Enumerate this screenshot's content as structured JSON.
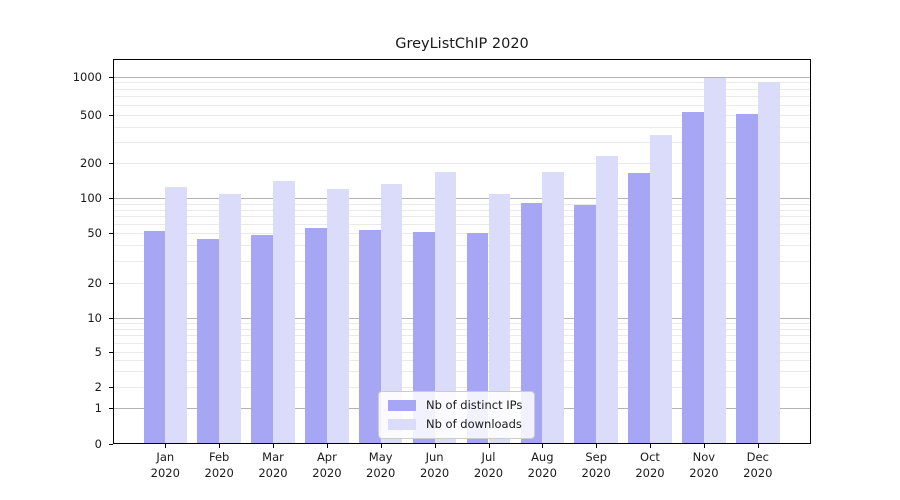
{
  "chart_data": {
    "type": "bar",
    "title": "GreyListChIP 2020",
    "y_scale": "pseudo-log",
    "y_ticks": [
      0,
      1,
      2,
      5,
      10,
      20,
      50,
      100,
      200,
      500,
      1000
    ],
    "y_minor_gridlines": [
      2,
      3,
      4,
      5,
      6,
      7,
      8,
      9,
      20,
      30,
      40,
      50,
      60,
      70,
      80,
      90,
      200,
      300,
      400,
      500,
      600,
      700,
      800,
      900
    ],
    "y_major_gridlines": [
      1,
      10,
      100,
      1000
    ],
    "categories": [
      "Jan",
      "Feb",
      "Mar",
      "Apr",
      "May",
      "Jun",
      "Jul",
      "Aug",
      "Sep",
      "Oct",
      "Nov",
      "Dec"
    ],
    "year": "2020",
    "series": [
      {
        "name": "Nb of distinct IPs",
        "color": "#a6a6f4",
        "values": [
          52,
          45,
          48,
          55,
          53,
          51,
          50,
          92,
          87,
          165,
          530,
          510
        ]
      },
      {
        "name": "Nb of downloads",
        "color": "#dbdbfa",
        "values": [
          125,
          110,
          140,
          120,
          132,
          170,
          108,
          170,
          230,
          340,
          970,
          900
        ]
      }
    ],
    "legend_position": "lower center",
    "colors": {
      "major_grid": "#b3b3b3",
      "minor_grid": "#e9e9e9",
      "axis": "#000000",
      "background": "#ffffff"
    }
  }
}
